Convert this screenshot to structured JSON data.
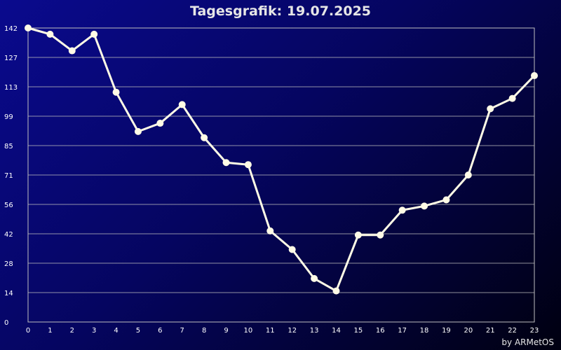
{
  "chart_data": {
    "type": "line",
    "title": "Tagesgrafik: 19.07.2025",
    "xlabel": "",
    "ylabel": "",
    "x": [
      0,
      1,
      2,
      3,
      4,
      5,
      6,
      7,
      8,
      9,
      10,
      11,
      12,
      13,
      14,
      15,
      16,
      17,
      18,
      19,
      20,
      21,
      22,
      23
    ],
    "x_tick_labels": [
      "0",
      "1",
      "2",
      "3",
      "4",
      "5",
      "6",
      "7",
      "8",
      "9",
      "10",
      "11",
      "12",
      "13",
      "14",
      "15",
      "16",
      "17",
      "18",
      "19",
      "20",
      "21",
      "22",
      "23"
    ],
    "y_tick_labels": [
      "0",
      "14",
      "28",
      "42",
      "56",
      "71",
      "85",
      "99",
      "113",
      "127",
      "142"
    ],
    "ylim": [
      0,
      142
    ],
    "grid": true,
    "series": [
      {
        "values": [
          142,
          139,
          131,
          139,
          111,
          92,
          96,
          105,
          89,
          77,
          76,
          44,
          35,
          21,
          15,
          42,
          42,
          54,
          56,
          59,
          71,
          103,
          108,
          119
        ]
      }
    ],
    "colors": {
      "line": "#fffbe6",
      "marker": "#fffbe6",
      "grid": "#bfbfbf",
      "text": "#ffffff"
    }
  },
  "footer": {
    "credit": "by ARMetOS"
  }
}
